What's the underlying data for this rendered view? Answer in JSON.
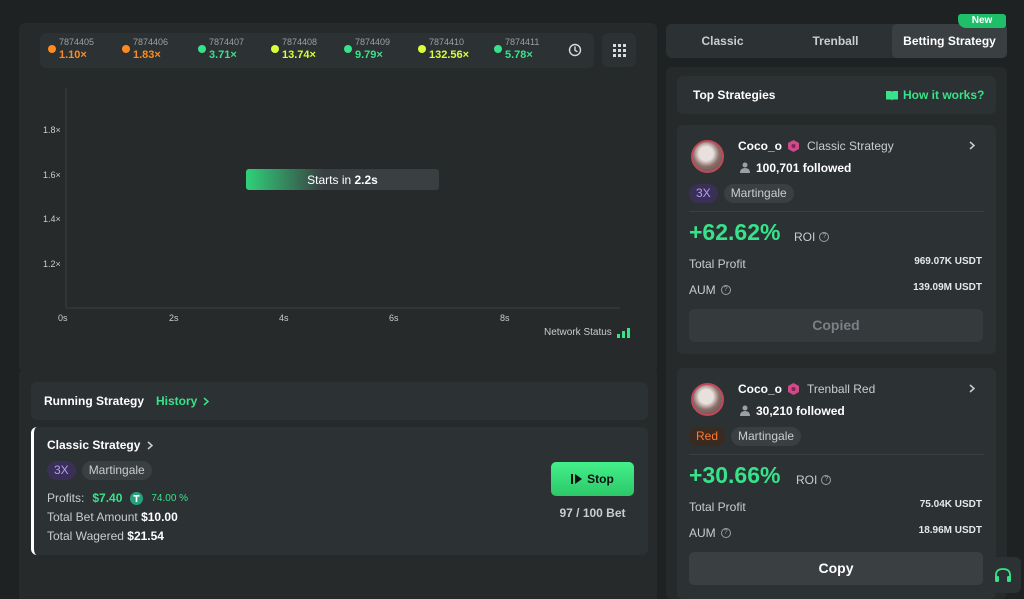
{
  "history": [
    {
      "id": "7874405",
      "mult": "1.10×",
      "color": "#ff8a1f"
    },
    {
      "id": "7874406",
      "mult": "1.83×",
      "color": "#ff8a1f"
    },
    {
      "id": "7874407",
      "mult": "3.71×",
      "color": "#37e38a"
    },
    {
      "id": "7874408",
      "mult": "13.74×",
      "color": "#d8ff3a"
    },
    {
      "id": "7874409",
      "mult": "9.79×",
      "color": "#37e38a"
    },
    {
      "id": "7874410",
      "mult": "132.56×",
      "color": "#d8ff3a"
    },
    {
      "id": "7874411",
      "mult": "5.78×",
      "color": "#37e38a"
    }
  ],
  "chart": {
    "y_ticks": [
      "1.8×",
      "1.6×",
      "1.4×",
      "1.2×"
    ],
    "x_ticks": [
      "0s",
      "2s",
      "4s",
      "6s",
      "8s"
    ],
    "starts_prefix": "Starts in ",
    "starts_value": "2.2s",
    "countdown_progress_pct": 40,
    "network_status": "Network Status"
  },
  "running": {
    "title": "Running Strategy",
    "history_link": "History",
    "card": {
      "name": "Classic Strategy",
      "chips": [
        "3X",
        "Martingale"
      ],
      "profits_label": "Profits:",
      "profits_value": "$7.40",
      "profits_pct": "74.00 %",
      "bet_label": "Total Bet Amount",
      "bet_value": "$10.00",
      "wagered_label": "Total Wagered",
      "wagered_value": "$21.54",
      "stop_label": "Stop",
      "bet_count": "97 / 100 Bet"
    }
  },
  "tabs": {
    "items": [
      "Classic",
      "Trenball",
      "Betting Strategy"
    ],
    "active": "Betting Strategy",
    "new_badge": "New"
  },
  "top": {
    "title": "Top Strategies",
    "how_link": "How it works?"
  },
  "strategies": [
    {
      "user": "Coco_o",
      "strategy": "Classic Strategy",
      "followers": "100,701 followed",
      "chips": [
        "3X",
        "Martingale"
      ],
      "roi": "+62.62%",
      "roi_label": "ROI",
      "profit_label": "Total Profit",
      "profit_value": "969.07K USDT",
      "aum_label": "AUM",
      "aum_value": "139.09M USDT",
      "button": "Copied"
    },
    {
      "user": "Coco_o",
      "strategy": "Trenball Red",
      "followers": "30,210 followed",
      "chips": [
        "Red",
        "Martingale"
      ],
      "roi": "+30.66%",
      "roi_label": "ROI",
      "profit_label": "Total Profit",
      "profit_value": "75.04K USDT",
      "aum_label": "AUM",
      "aum_value": "18.96M USDT",
      "button": "Copy"
    }
  ]
}
